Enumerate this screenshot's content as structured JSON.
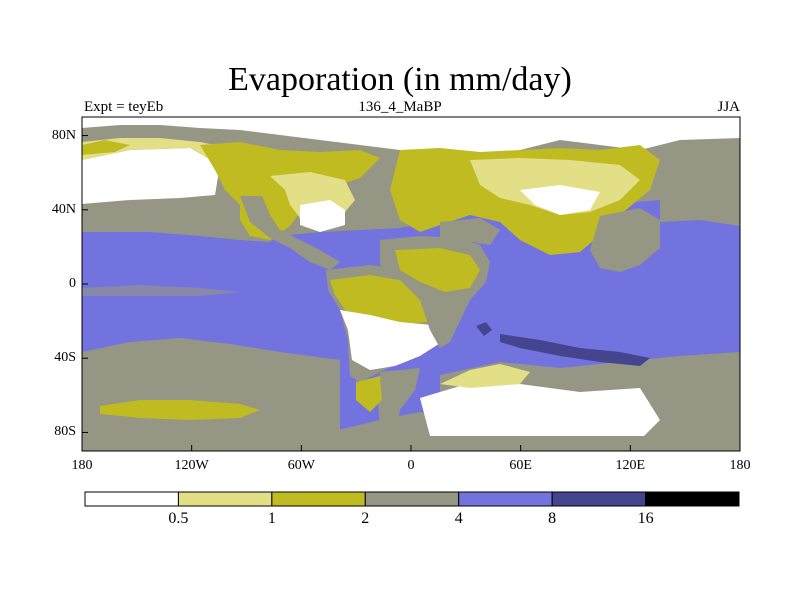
{
  "title": "Evaporation (in mm/day)",
  "subtitle": {
    "left": "Expt = teyEb",
    "center": "136_4_MaBP",
    "right": "JJA"
  },
  "map": {
    "lon_range": [
      -180,
      180
    ],
    "lat_range": [
      -90,
      90
    ],
    "ocean_color_default": "#7373df",
    "colors": {
      "white": "#ffffff",
      "pale_yellow": "#e2df86",
      "olive": "#bfbb21",
      "gray": "#969685",
      "blue": "#7373df",
      "dark_blue": "#45458f",
      "black": "#000000"
    }
  },
  "y_axis": {
    "ticks": [
      {
        "label": "80N",
        "value": 80
      },
      {
        "label": "40N",
        "value": 40
      },
      {
        "label": "0",
        "value": 0
      },
      {
        "label": "40S",
        "value": -40
      },
      {
        "label": "80S",
        "value": -80
      }
    ]
  },
  "x_axis": {
    "ticks": [
      {
        "label": "180",
        "value": -180
      },
      {
        "label": "120W",
        "value": -120
      },
      {
        "label": "60W",
        "value": -60
      },
      {
        "label": "0",
        "value": 0
      },
      {
        "label": "60E",
        "value": 60
      },
      {
        "label": "120E",
        "value": 120
      },
      {
        "label": "180",
        "value": 180
      }
    ]
  },
  "colorbar": {
    "boxes": [
      {
        "color": "#ffffff"
      },
      {
        "color": "#e2df86"
      },
      {
        "color": "#bfbb21"
      },
      {
        "color": "#969685"
      },
      {
        "color": "#7373df"
      },
      {
        "color": "#45458f"
      },
      {
        "color": "#000000"
      }
    ],
    "labels": [
      "0.5",
      "1",
      "2",
      "4",
      "8",
      "16"
    ]
  }
}
